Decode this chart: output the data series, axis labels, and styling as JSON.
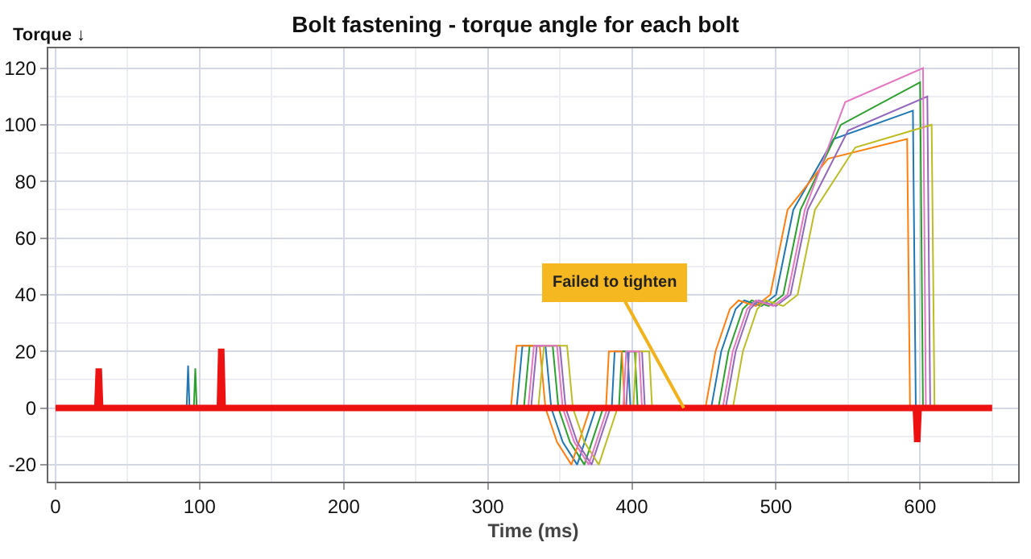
{
  "chart_data": {
    "type": "line",
    "title": "Bolt fastening - torque angle for each bolt",
    "xlabel": "Time (ms)",
    "ylabel": "Torque ↓",
    "xlim": [
      -5,
      668
    ],
    "ylim": [
      -26,
      127
    ],
    "xticks": [
      0,
      100,
      200,
      300,
      400,
      500,
      600
    ],
    "yticks": [
      -20,
      0,
      20,
      40,
      60,
      80,
      100,
      120
    ],
    "grid": true,
    "marker": "none",
    "line_style": "solid",
    "series": [
      {
        "color": "#1f77b4",
        "x": [
          0,
          91,
          92,
          93,
          320,
          324,
          340,
          344,
          352,
          362,
          375,
          386,
          388,
          397,
          399,
          455,
          462,
          472,
          478,
          490,
          500,
          512,
          540,
          595,
          597,
          640
        ],
        "values": [
          0,
          0,
          15,
          0,
          0,
          22,
          22,
          0,
          -12,
          -20,
          0,
          0,
          20,
          20,
          0,
          0,
          20,
          35,
          38,
          36,
          40,
          70,
          95,
          105,
          0,
          0
        ]
      },
      {
        "color": "#2ca02c",
        "x": [
          0,
          96,
          97,
          98,
          325,
          329,
          345,
          349,
          357,
          367,
          380,
          391,
          393,
          402,
          404,
          460,
          467,
          477,
          483,
          495,
          505,
          517,
          545,
          600,
          602,
          640
        ],
        "values": [
          0,
          0,
          14,
          0,
          0,
          22,
          22,
          0,
          -12,
          -20,
          0,
          0,
          20,
          20,
          0,
          0,
          20,
          35,
          38,
          36,
          40,
          70,
          100,
          115,
          0,
          0
        ]
      },
      {
        "color": "#ff7f0e",
        "x": [
          0,
          316,
          320,
          336,
          340,
          348,
          358,
          371,
          382,
          384,
          393,
          395,
          451,
          458,
          468,
          474,
          486,
          496,
          508,
          536,
          591,
          593,
          640
        ],
        "values": [
          0,
          0,
          22,
          22,
          0,
          -12,
          -20,
          0,
          0,
          20,
          20,
          0,
          0,
          20,
          35,
          38,
          36,
          40,
          70,
          88,
          95,
          0,
          0
        ]
      },
      {
        "color": "#9467bd",
        "x": [
          0,
          330,
          334,
          350,
          354,
          362,
          372,
          385,
          396,
          398,
          407,
          409,
          465,
          472,
          482,
          488,
          500,
          510,
          522,
          550,
          605,
          607,
          640
        ],
        "values": [
          0,
          0,
          22,
          22,
          0,
          -12,
          -20,
          0,
          0,
          20,
          20,
          0,
          0,
          20,
          35,
          38,
          36,
          40,
          70,
          98,
          110,
          0,
          0
        ]
      },
      {
        "color": "#bcbd22",
        "x": [
          0,
          335,
          339,
          355,
          359,
          367,
          377,
          390,
          401,
          403,
          412,
          414,
          470,
          477,
          487,
          493,
          505,
          515,
          527,
          555,
          608,
          610,
          640
        ],
        "values": [
          0,
          0,
          22,
          22,
          0,
          -12,
          -20,
          0,
          0,
          20,
          20,
          0,
          0,
          20,
          35,
          38,
          36,
          40,
          70,
          92,
          100,
          0,
          0
        ]
      },
      {
        "color": "#e377c2",
        "x": [
          0,
          328,
          332,
          348,
          352,
          360,
          370,
          383,
          394,
          396,
          405,
          407,
          463,
          470,
          480,
          486,
          498,
          508,
          520,
          548,
          602,
          604,
          640
        ],
        "values": [
          0,
          0,
          22,
          22,
          0,
          -12,
          -20,
          0,
          0,
          20,
          20,
          0,
          0,
          20,
          35,
          38,
          36,
          40,
          70,
          108,
          120,
          0,
          0
        ]
      },
      {
        "color": "#ee1111",
        "x": [
          0,
          29,
          30,
          31,
          113,
          114,
          115,
          116,
          596,
          597,
          598,
          599,
          600,
          650
        ],
        "values": [
          0,
          0,
          14,
          0,
          0,
          0,
          21,
          0,
          0,
          0,
          -12,
          0,
          0,
          0
        ]
      }
    ],
    "annotations": [
      {
        "text": "Failed to tighten",
        "x": 436,
        "y": 0
      }
    ]
  }
}
